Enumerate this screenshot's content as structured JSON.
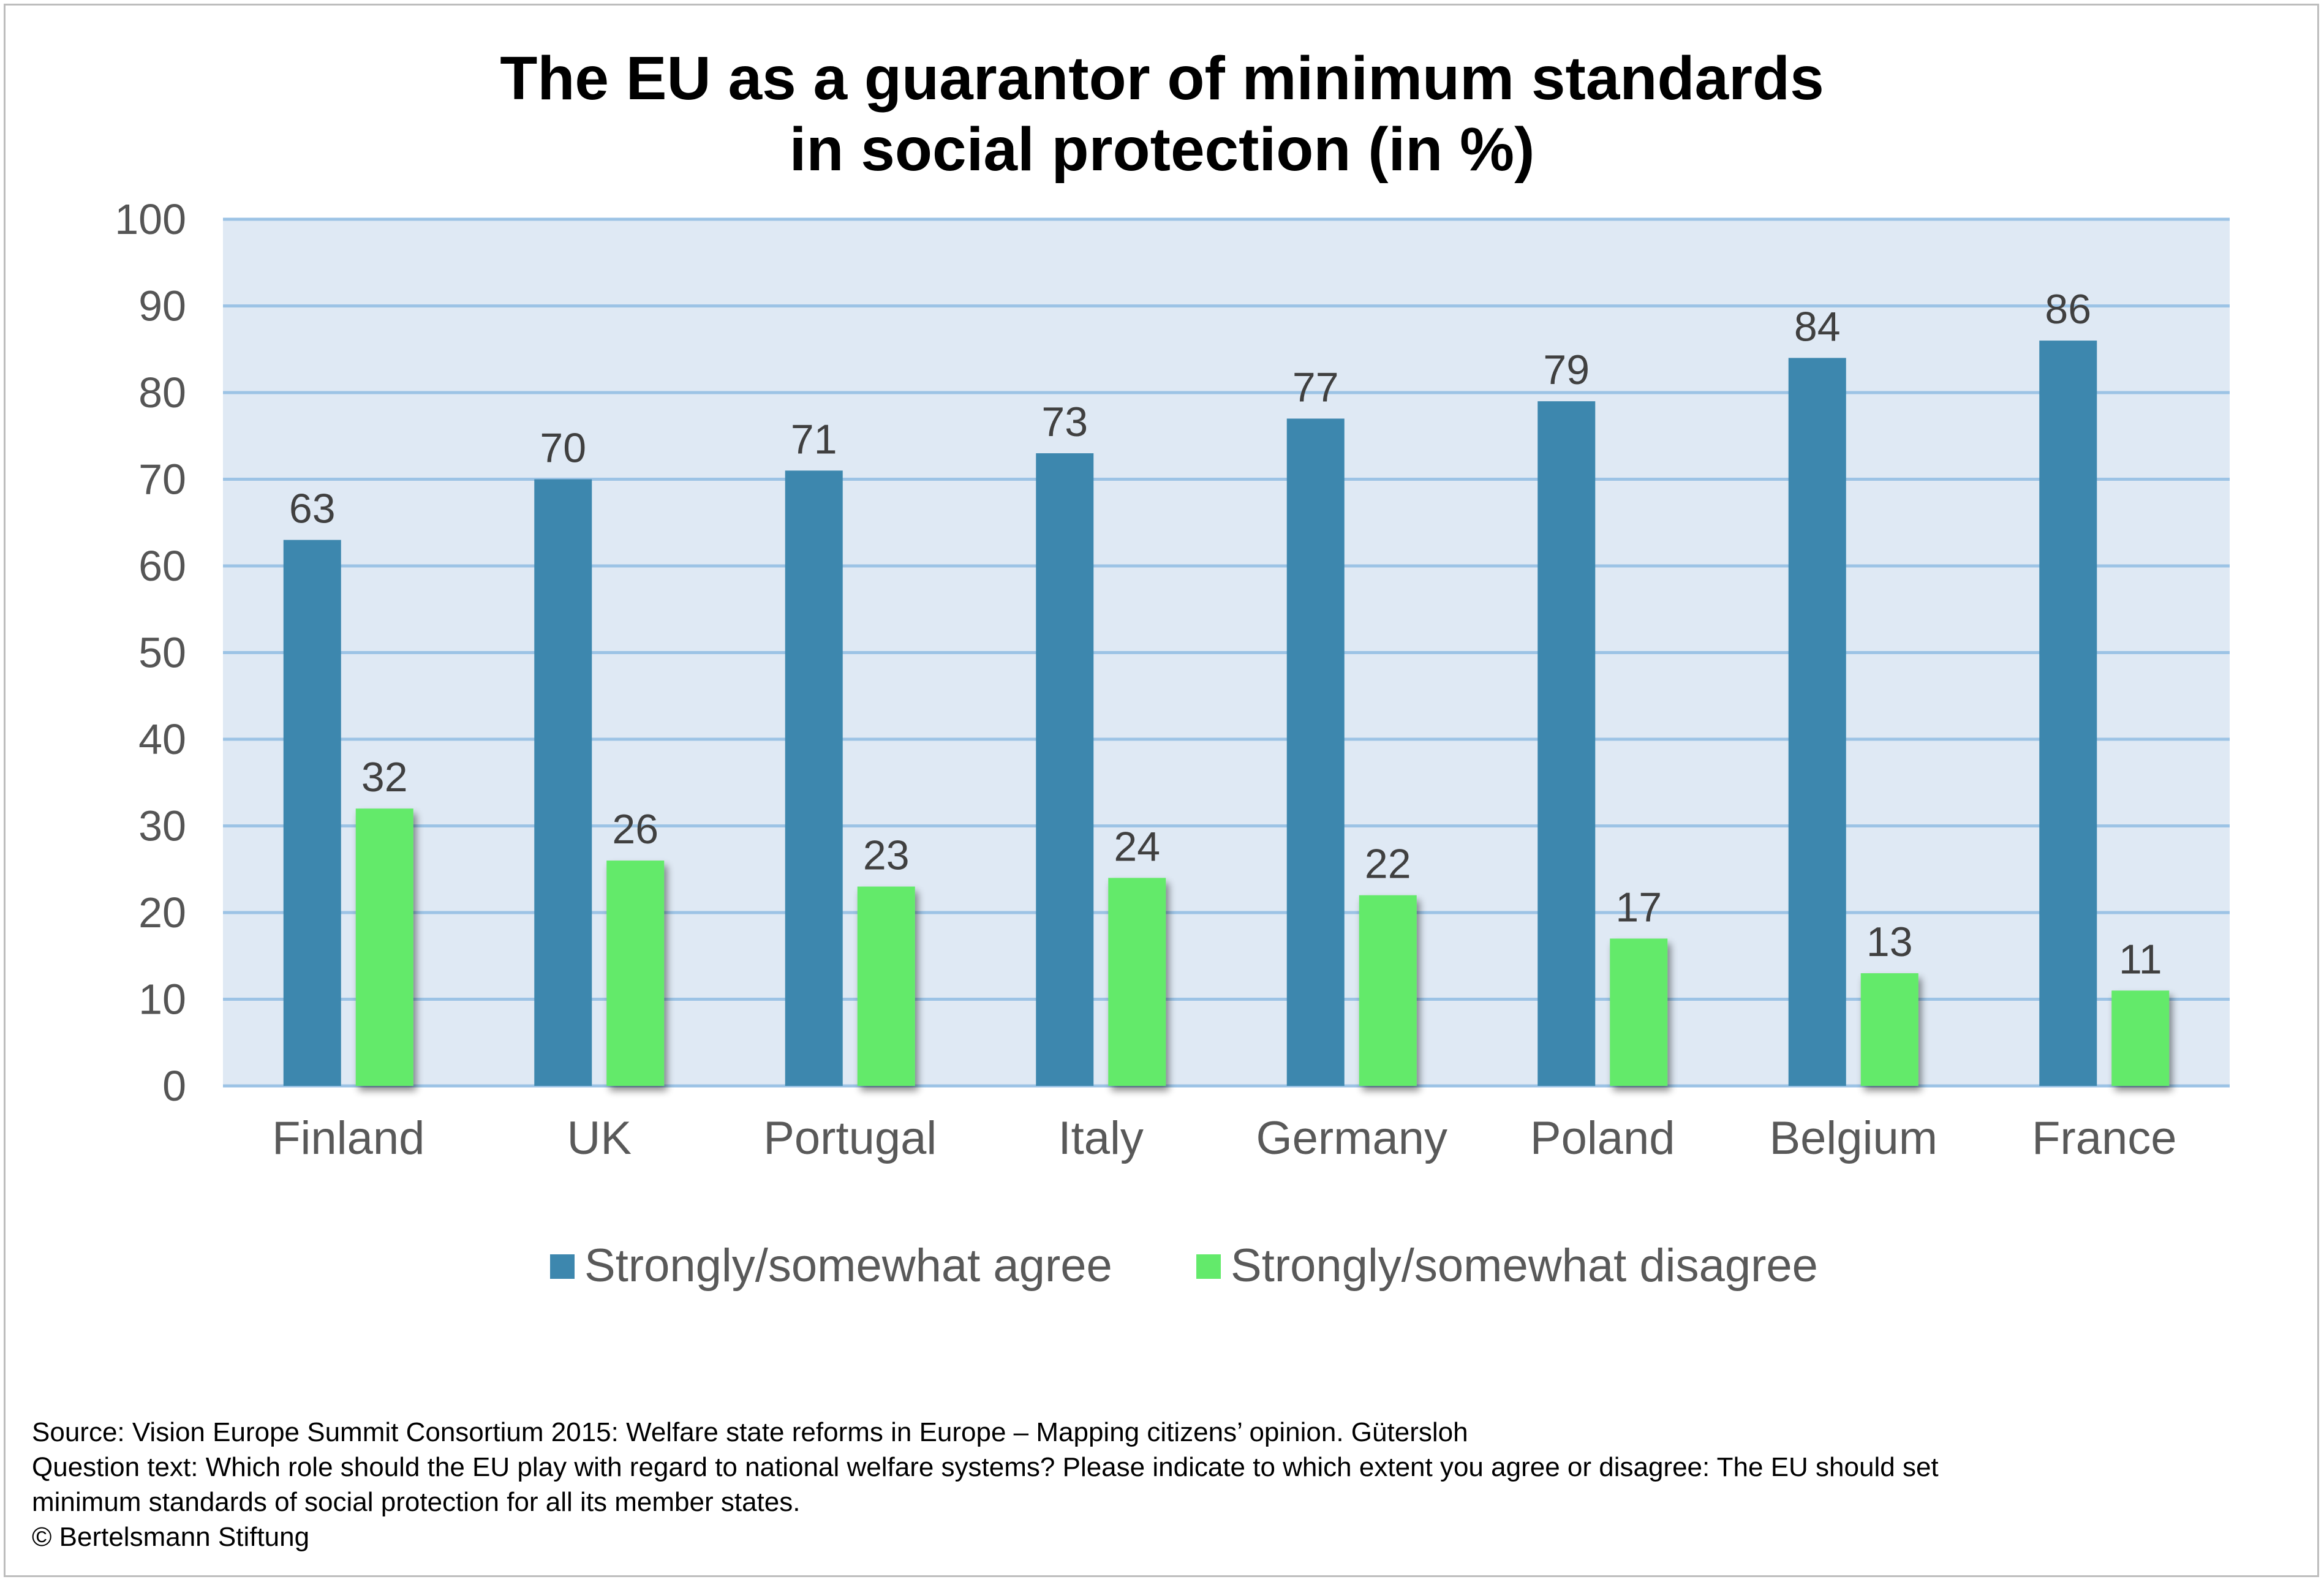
{
  "chart_data": {
    "type": "bar",
    "title": "The EU as a guarantor of minimum standards in social protection (in %)",
    "title_lines": [
      "The EU as a guarantor of minimum standards",
      "in social protection (in %)"
    ],
    "categories": [
      "Finland",
      "UK",
      "Portugal",
      "Italy",
      "Germany",
      "Poland",
      "Belgium",
      "France"
    ],
    "series": [
      {
        "name": "Strongly/somewhat agree",
        "color": "#3d87ae",
        "values": [
          63,
          70,
          71,
          73,
          77,
          79,
          84,
          86
        ]
      },
      {
        "name": "Strongly/somewhat disagree",
        "color": "#63ea6b",
        "values": [
          32,
          26,
          23,
          24,
          22,
          17,
          13,
          11
        ]
      }
    ],
    "ylim": [
      0,
      100
    ],
    "yticks": [
      0,
      10,
      20,
      30,
      40,
      50,
      60,
      70,
      80,
      90,
      100
    ],
    "grid": true,
    "legend_position": "bottom",
    "data_labels": true,
    "plot_background": "#dfe9f4",
    "gridline_color": "#9cc3e5"
  },
  "footer": {
    "source": "Source: Vision Europe Summit Consortium 2015: Welfare state reforms in Europe – Mapping citizens’ opinion. Gütersloh",
    "question_line1": "Question text: Which role should the EU play with regard to national welfare systems? Please indicate to which extent you agree or disagree: The EU should set",
    "question_line2": "minimum standards of social protection for all its member states.",
    "copyright": "© Bertelsmann Stiftung"
  }
}
